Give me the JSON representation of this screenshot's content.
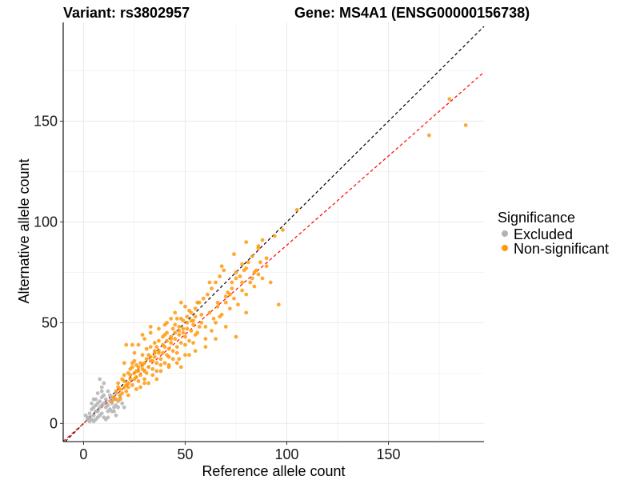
{
  "chart_data": {
    "type": "scatter",
    "title_left": "Variant: rs3802957",
    "title_right": "Gene: MS4A1 (ENSG00000156738)",
    "xlabel": "Reference allele count",
    "ylabel": "Alternative allele count",
    "xlim": [
      -10,
      197
    ],
    "ylim": [
      -9,
      199
    ],
    "xticks": [
      0,
      50,
      100,
      150
    ],
    "yticks": [
      0,
      50,
      100,
      150
    ],
    "grid": true,
    "legend": {
      "title": "Significance",
      "position": "right",
      "entries": [
        "Excluded",
        "Non-significant"
      ]
    },
    "colors": {
      "Excluded": "#b3b3b3",
      "Non-significant": "#ff9a0e",
      "identity_line": "#000000",
      "fit_line": "#ff0000",
      "grid": "#ebebeb",
      "axis": "#000000"
    },
    "reference_lines": [
      {
        "name": "identity",
        "slope": 1.0,
        "intercept": 0,
        "style": "dashed",
        "color": "#000000"
      },
      {
        "name": "fit",
        "slope": 0.885,
        "intercept": 0,
        "style": "dashed",
        "color": "#ff0000"
      }
    ],
    "series": [
      {
        "name": "Excluded",
        "points": [
          [
            2,
            3
          ],
          [
            3,
            5
          ],
          [
            4,
            7
          ],
          [
            5,
            8
          ],
          [
            6,
            9
          ],
          [
            7,
            10
          ],
          [
            8,
            11
          ],
          [
            6,
            6
          ],
          [
            5,
            4
          ],
          [
            7,
            6
          ],
          [
            8,
            8
          ],
          [
            9,
            9
          ],
          [
            10,
            10
          ],
          [
            11,
            8
          ],
          [
            12,
            9
          ],
          [
            13,
            11
          ],
          [
            14,
            10
          ],
          [
            15,
            12
          ],
          [
            16,
            9
          ],
          [
            17,
            8
          ],
          [
            10,
            3
          ],
          [
            11,
            2
          ],
          [
            12,
            3
          ],
          [
            9,
            5
          ],
          [
            8,
            4
          ],
          [
            7,
            3
          ],
          [
            6,
            2
          ],
          [
            5,
            1
          ],
          [
            4,
            2
          ],
          [
            3,
            3
          ],
          [
            8,
            22
          ],
          [
            7,
            15
          ],
          [
            9,
            16
          ],
          [
            10,
            14
          ],
          [
            12,
            16
          ],
          [
            13,
            14
          ],
          [
            14,
            13
          ],
          [
            16,
            15
          ],
          [
            18,
            13
          ],
          [
            19,
            10
          ],
          [
            20,
            8
          ],
          [
            12,
            6
          ],
          [
            13,
            7
          ],
          [
            15,
            6
          ],
          [
            6,
            12
          ],
          [
            4,
            10
          ],
          [
            5,
            12
          ],
          [
            9,
            13
          ],
          [
            11,
            12
          ],
          [
            17,
            11
          ],
          [
            15,
            8
          ],
          [
            2,
            2
          ],
          [
            3,
            1
          ],
          [
            1,
            4
          ],
          [
            9,
            18
          ],
          [
            10,
            20
          ],
          [
            14,
            6
          ],
          [
            16,
            4
          ]
        ]
      },
      {
        "name": "Non-significant",
        "points": [
          [
            15,
            13
          ],
          [
            16,
            16
          ],
          [
            17,
            20
          ],
          [
            18,
            14
          ],
          [
            19,
            22
          ],
          [
            20,
            18
          ],
          [
            21,
            16
          ],
          [
            22,
            20
          ],
          [
            23,
            24
          ],
          [
            24,
            19
          ],
          [
            25,
            22
          ],
          [
            26,
            26
          ],
          [
            27,
            21
          ],
          [
            28,
            24
          ],
          [
            29,
            27
          ],
          [
            30,
            30
          ],
          [
            31,
            25
          ],
          [
            32,
            28
          ],
          [
            33,
            31
          ],
          [
            34,
            27
          ],
          [
            35,
            33
          ],
          [
            36,
            30
          ],
          [
            37,
            36
          ],
          [
            38,
            32
          ],
          [
            39,
            35
          ],
          [
            40,
            38
          ],
          [
            41,
            34
          ],
          [
            42,
            37
          ],
          [
            43,
            40
          ],
          [
            44,
            36
          ],
          [
            45,
            42
          ],
          [
            46,
            38
          ],
          [
            47,
            44
          ],
          [
            48,
            40
          ],
          [
            49,
            45
          ],
          [
            50,
            43
          ],
          [
            51,
            47
          ],
          [
            52,
            41
          ],
          [
            53,
            46
          ],
          [
            54,
            49
          ],
          [
            55,
            44
          ],
          [
            20,
            21
          ],
          [
            22,
            25
          ],
          [
            24,
            28
          ],
          [
            26,
            23
          ],
          [
            28,
            30
          ],
          [
            30,
            26
          ],
          [
            32,
            34
          ],
          [
            34,
            31
          ],
          [
            36,
            38
          ],
          [
            38,
            29
          ],
          [
            40,
            44
          ],
          [
            42,
            33
          ],
          [
            44,
            47
          ],
          [
            46,
            35
          ],
          [
            48,
            52
          ],
          [
            50,
            39
          ],
          [
            52,
            56
          ],
          [
            54,
            40
          ],
          [
            56,
            45
          ],
          [
            58,
            50
          ],
          [
            60,
            48
          ],
          [
            62,
            55
          ],
          [
            64,
            52
          ],
          [
            66,
            58
          ],
          [
            68,
            54
          ],
          [
            70,
            60
          ],
          [
            72,
            57
          ],
          [
            74,
            62
          ],
          [
            76,
            59
          ],
          [
            78,
            66
          ],
          [
            80,
            64
          ],
          [
            82,
            70
          ],
          [
            84,
            68
          ],
          [
            86,
            74
          ],
          [
            88,
            72
          ],
          [
            90,
            78
          ],
          [
            14,
            11
          ],
          [
            16,
            12
          ],
          [
            18,
            17
          ],
          [
            20,
            24
          ],
          [
            22,
            18
          ],
          [
            24,
            30
          ],
          [
            26,
            29
          ],
          [
            28,
            18
          ],
          [
            30,
            22
          ],
          [
            32,
            20
          ],
          [
            34,
            24
          ],
          [
            36,
            22
          ],
          [
            38,
            26
          ],
          [
            40,
            30
          ],
          [
            42,
            28
          ],
          [
            44,
            32
          ],
          [
            46,
            30
          ],
          [
            48,
            28
          ],
          [
            50,
            34
          ],
          [
            25,
            35
          ],
          [
            27,
            39
          ],
          [
            30,
            42
          ],
          [
            33,
            45
          ],
          [
            35,
            40
          ],
          [
            37,
            47
          ],
          [
            40,
            49
          ],
          [
            43,
            52
          ],
          [
            45,
            55
          ],
          [
            48,
            60
          ],
          [
            50,
            58
          ],
          [
            57,
            48
          ],
          [
            60,
            42
          ],
          [
            63,
            46
          ],
          [
            65,
            50
          ],
          [
            67,
            53
          ],
          [
            70,
            63
          ],
          [
            73,
            67
          ],
          [
            75,
            72
          ],
          [
            78,
            79
          ],
          [
            80,
            77
          ],
          [
            83,
            83
          ],
          [
            86,
            87
          ],
          [
            88,
            91
          ],
          [
            20,
            30
          ],
          [
            21,
            39
          ],
          [
            23,
            27
          ],
          [
            25,
            31
          ],
          [
            27,
            28
          ],
          [
            29,
            34
          ],
          [
            31,
            37
          ],
          [
            33,
            38
          ],
          [
            35,
            35
          ],
          [
            37,
            41
          ],
          [
            39,
            43
          ],
          [
            41,
            45
          ],
          [
            43,
            43
          ],
          [
            45,
            49
          ],
          [
            47,
            48
          ],
          [
            49,
            51
          ],
          [
            51,
            53
          ],
          [
            53,
            55
          ],
          [
            55,
            57
          ],
          [
            57,
            60
          ],
          [
            59,
            62
          ],
          [
            61,
            64
          ],
          [
            63,
            67
          ],
          [
            65,
            70
          ],
          [
            67,
            73
          ],
          [
            69,
            76
          ],
          [
            71,
            65
          ],
          [
            73,
            70
          ],
          [
            75,
            75
          ],
          [
            77,
            73
          ],
          [
            79,
            76
          ],
          [
            81,
            80
          ],
          [
            83,
            72
          ],
          [
            85,
            76
          ],
          [
            87,
            80
          ],
          [
            92,
            70
          ],
          [
            96,
            59
          ],
          [
            94,
            93
          ],
          [
            98,
            96
          ],
          [
            105,
            106
          ],
          [
            75,
            43
          ],
          [
            80,
            55
          ],
          [
            70,
            48
          ],
          [
            65,
            42
          ],
          [
            60,
            38
          ],
          [
            55,
            36
          ],
          [
            52,
            34
          ],
          [
            47,
            32
          ],
          [
            42,
            29
          ],
          [
            36,
            26
          ],
          [
            30,
            20
          ],
          [
            26,
            17
          ],
          [
            22,
            14
          ],
          [
            18,
            12
          ],
          [
            33,
            48
          ],
          [
            29,
            44
          ],
          [
            24,
            39
          ],
          [
            41,
            50
          ],
          [
            46,
            52
          ],
          [
            56,
            60
          ],
          [
            62,
            70
          ],
          [
            68,
            78
          ],
          [
            74,
            84
          ],
          [
            80,
            90
          ],
          [
            86,
            88
          ],
          [
            17,
            18
          ],
          [
            19,
            15
          ],
          [
            21,
            19
          ],
          [
            23,
            22
          ],
          [
            25,
            25
          ],
          [
            27,
            26
          ],
          [
            29,
            29
          ],
          [
            31,
            32
          ],
          [
            33,
            33
          ],
          [
            35,
            36
          ],
          [
            37,
            35
          ],
          [
            39,
            39
          ],
          [
            41,
            41
          ],
          [
            43,
            42
          ],
          [
            45,
            45
          ],
          [
            47,
            46
          ],
          [
            49,
            47
          ],
          [
            51,
            50
          ],
          [
            53,
            51
          ],
          [
            55,
            53
          ],
          [
            170,
            143
          ],
          [
            180,
            161
          ],
          [
            188,
            148
          ],
          [
            84,
            75
          ],
          [
            90,
            82
          ],
          [
            78,
            70
          ],
          [
            72,
            64
          ],
          [
            66,
            60
          ],
          [
            58,
            54
          ],
          [
            54,
            51
          ]
        ]
      }
    ]
  }
}
